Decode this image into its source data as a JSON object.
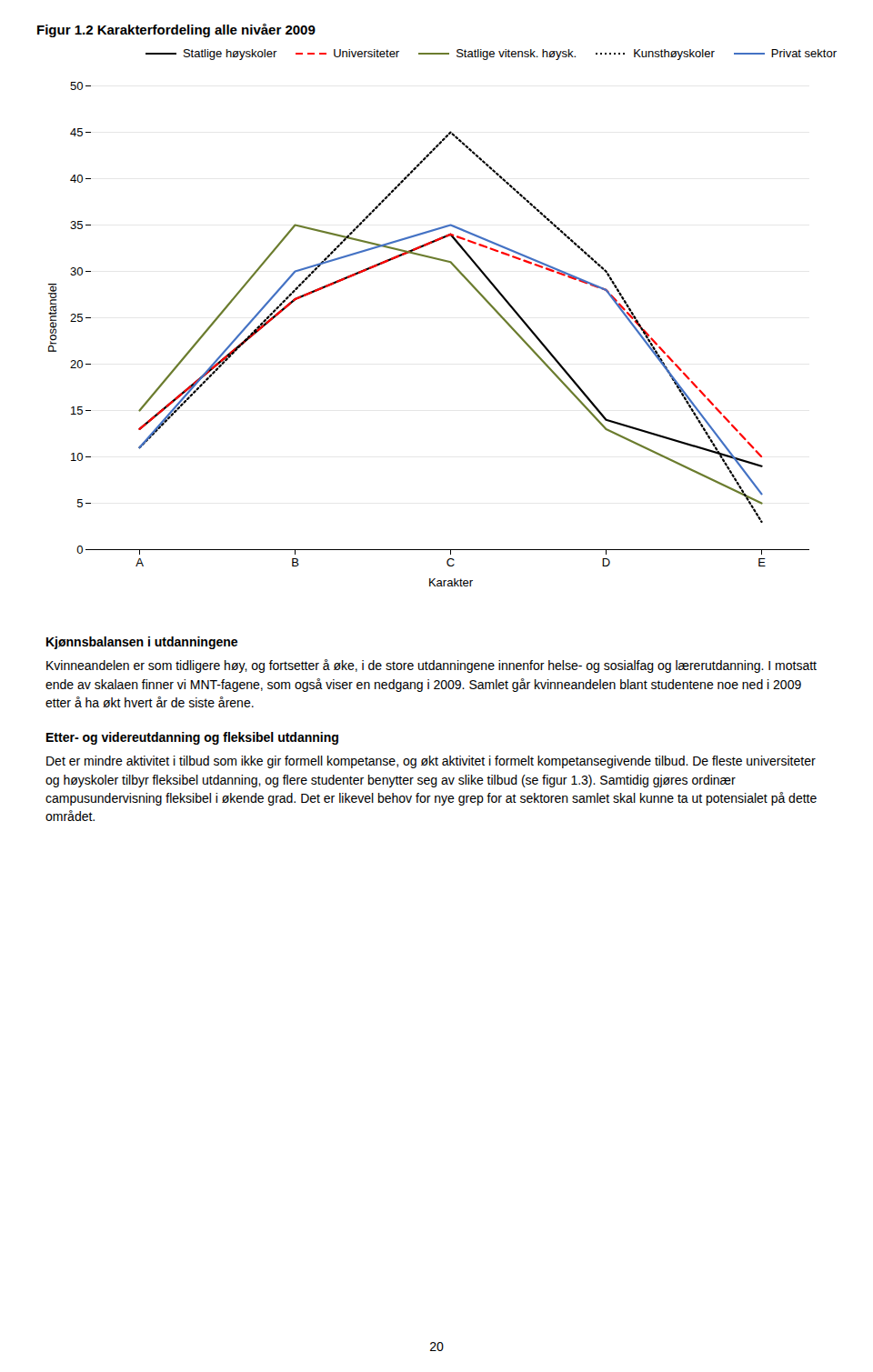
{
  "chart_data": {
    "type": "line",
    "title": "Figur 1.2 Karakterfordeling alle nivåer 2009",
    "x_label": "Karakter",
    "y_label": "Prosentandel",
    "categories": [
      "A",
      "B",
      "C",
      "D",
      "E"
    ],
    "series": [
      {
        "name": "Statlige høyskoler",
        "color": "#000000",
        "line_style": "solid",
        "values": [
          13,
          27,
          34,
          14,
          9
        ]
      },
      {
        "name": "Universiteter",
        "color": "#ff0000",
        "line_style": "dashed",
        "values": [
          13,
          27,
          34,
          28,
          10
        ]
      },
      {
        "name": "Statlige vitensk. høysk.",
        "color": "#6b7c2e",
        "line_style": "solid",
        "values": [
          15,
          35,
          31,
          13,
          5
        ]
      },
      {
        "name": "Kunsthøyskoler",
        "color": "#000000",
        "line_style": "dotted",
        "values": [
          11,
          28,
          45,
          30,
          3
        ]
      },
      {
        "name": "Privat sektor",
        "color": "#4472c4",
        "line_style": "solid",
        "values": [
          11,
          30,
          35,
          28,
          6
        ]
      }
    ],
    "ylim": [
      0,
      50
    ],
    "yticks": [
      0,
      5,
      10,
      15,
      20,
      25,
      30,
      35,
      40,
      45,
      50
    ],
    "grid": true,
    "legend": "upper right"
  },
  "text_body": [
    {
      "heading": "Kjønnsbalansen i utdanningene",
      "paragraph": "Kvinneandelen er som tidligere høy, og fortsetter å øke, i de store utdanningene innenfor helse- og sosialfag og lærerutdanning. I motsatt ende av skalaen finner vi MNT-fagene, som også viser en nedgang i 2009. Samlet går kvinneandelen blant studentene noe ned i 2009 etter å ha økt hvert år de siste årene."
    },
    {
      "heading": "Etter- og videreutdanning og fleksibel utdanning",
      "paragraph": "Det er mindre aktivitet i tilbud som ikke gir formell kompetanse, og økt aktivitet i formelt kompetansegivende tilbud. De fleste universiteter og høyskoler tilbyr fleksibel utdanning, og flere studenter benytter seg av slike tilbud (se figur 1.3). Samtidig gjøres ordinær campusundervisning fleksibel i økende grad. Det er likevel behov for nye grep for at sektoren samlet skal kunne ta ut potensialet på dette området."
    }
  ],
  "page_number": "20"
}
